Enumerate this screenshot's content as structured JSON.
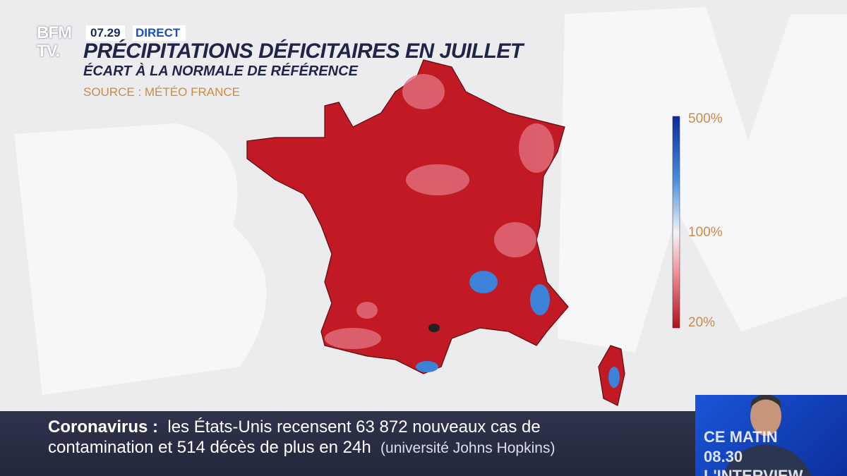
{
  "header": {
    "logo": [
      "BFM",
      "TV."
    ],
    "time": "07.29",
    "live": "DIRECT"
  },
  "map": {
    "title": "PRÉCIPITATIONS DÉFICITAIRES EN JUILLET",
    "subtitle": "ÉCART À LA NORMALE DE RÉFÉRENCE",
    "source": "SOURCE : MÉTÉO FRANCE",
    "legend": [
      "500%",
      "100%",
      "20%"
    ]
  },
  "ticker": {
    "topic": "Coronavirus :",
    "line1": "les États-Unis recensent 63 872 nouveaux cas de",
    "line2": "contamination et 514 décès de plus en 24h",
    "source": "(université Johns Hopkins)"
  },
  "inset": [
    "CE MATIN",
    "08.30",
    "L'INTERVIEW"
  ]
}
